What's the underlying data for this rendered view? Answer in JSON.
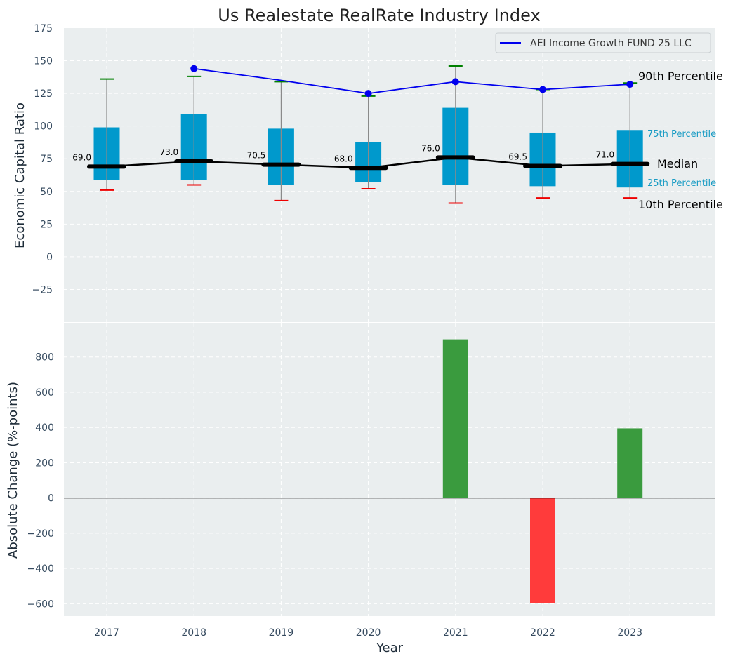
{
  "chart_data": [
    {
      "type": "box",
      "title": "Us Realestate RealRate Industry Index",
      "ylabel": "Economic Capital Ratio",
      "xlabel": "",
      "ylim": [
        -50,
        175
      ],
      "yticks": [
        -25,
        0,
        25,
        50,
        75,
        100,
        125,
        150,
        175
      ],
      "ytick_labels": [
        "−25",
        "0",
        "25",
        "50",
        "75",
        "100",
        "125",
        "150",
        "175"
      ],
      "grid": true,
      "categories": [
        "2017",
        "2018",
        "2019",
        "2020",
        "2021",
        "2022",
        "2023"
      ],
      "boxes": [
        {
          "year": "2017",
          "p10": 51,
          "q1": 59,
          "median": 69.0,
          "q3": 99,
          "p90": 136
        },
        {
          "year": "2018",
          "p10": 55,
          "q1": 59,
          "median": 73.0,
          "q3": 109,
          "p90": 138
        },
        {
          "year": "2019",
          "p10": 43,
          "q1": 55,
          "median": 70.5,
          "q3": 98,
          "p90": 134
        },
        {
          "year": "2020",
          "p10": 52,
          "q1": 57,
          "median": 68.0,
          "q3": 88,
          "p90": 123
        },
        {
          "year": "2021",
          "p10": 41,
          "q1": 55,
          "median": 76.0,
          "q3": 114,
          "p90": 146
        },
        {
          "year": "2022",
          "p10": 45,
          "q1": 54,
          "median": 69.5,
          "q3": 95,
          "p90": 128
        },
        {
          "year": "2023",
          "p10": 45,
          "q1": 53,
          "median": 71.0,
          "q3": 97,
          "p90": 133
        }
      ],
      "median_labels": [
        "69.0",
        "73.0",
        "70.5",
        "68.0",
        "76.0",
        "69.5",
        "71.0"
      ],
      "series": [
        {
          "name": "AEI Income Growth FUND 25 LLC",
          "color": "#0000ee",
          "x": [
            "2018",
            "2019",
            "2020",
            "2021",
            "2022",
            "2023"
          ],
          "values": [
            144,
            135,
            125,
            134,
            128,
            132
          ],
          "markers": [
            true,
            false,
            true,
            true,
            true,
            true
          ]
        }
      ],
      "legend": {
        "entries": [
          "AEI Income Growth FUND 25 LLC"
        ],
        "placement": "top-right"
      },
      "annotations": {
        "p90": "90th Percentile",
        "p75": "75th Percentile",
        "median": "Median",
        "p25": "25th Percentile",
        "p10": "10th Percentile"
      }
    },
    {
      "type": "bar",
      "title": "",
      "ylabel": "Absolute Change (%-points)",
      "xlabel": "Year",
      "ylim": [
        -670,
        990
      ],
      "yticks": [
        -600,
        -400,
        -200,
        0,
        200,
        400,
        600,
        800
      ],
      "ytick_labels": [
        "−600",
        "−400",
        "−200",
        "0",
        "200",
        "400",
        "600",
        "800"
      ],
      "grid": true,
      "categories": [
        "2017",
        "2018",
        "2019",
        "2020",
        "2021",
        "2022",
        "2023"
      ],
      "values": [
        0,
        0,
        0,
        0,
        900,
        -598,
        395
      ]
    }
  ],
  "colors": {
    "box_fill": "#0099cc",
    "median_line": "#000000",
    "p90_cap": "#008000",
    "p10_cap": "#ee0000",
    "whisker": "#8a8a8a",
    "positive_bar": "#3a9b3e",
    "negative_bar": "#ff3b3b",
    "panel_bg": "#eaeeef",
    "grid": "#ffffff"
  }
}
